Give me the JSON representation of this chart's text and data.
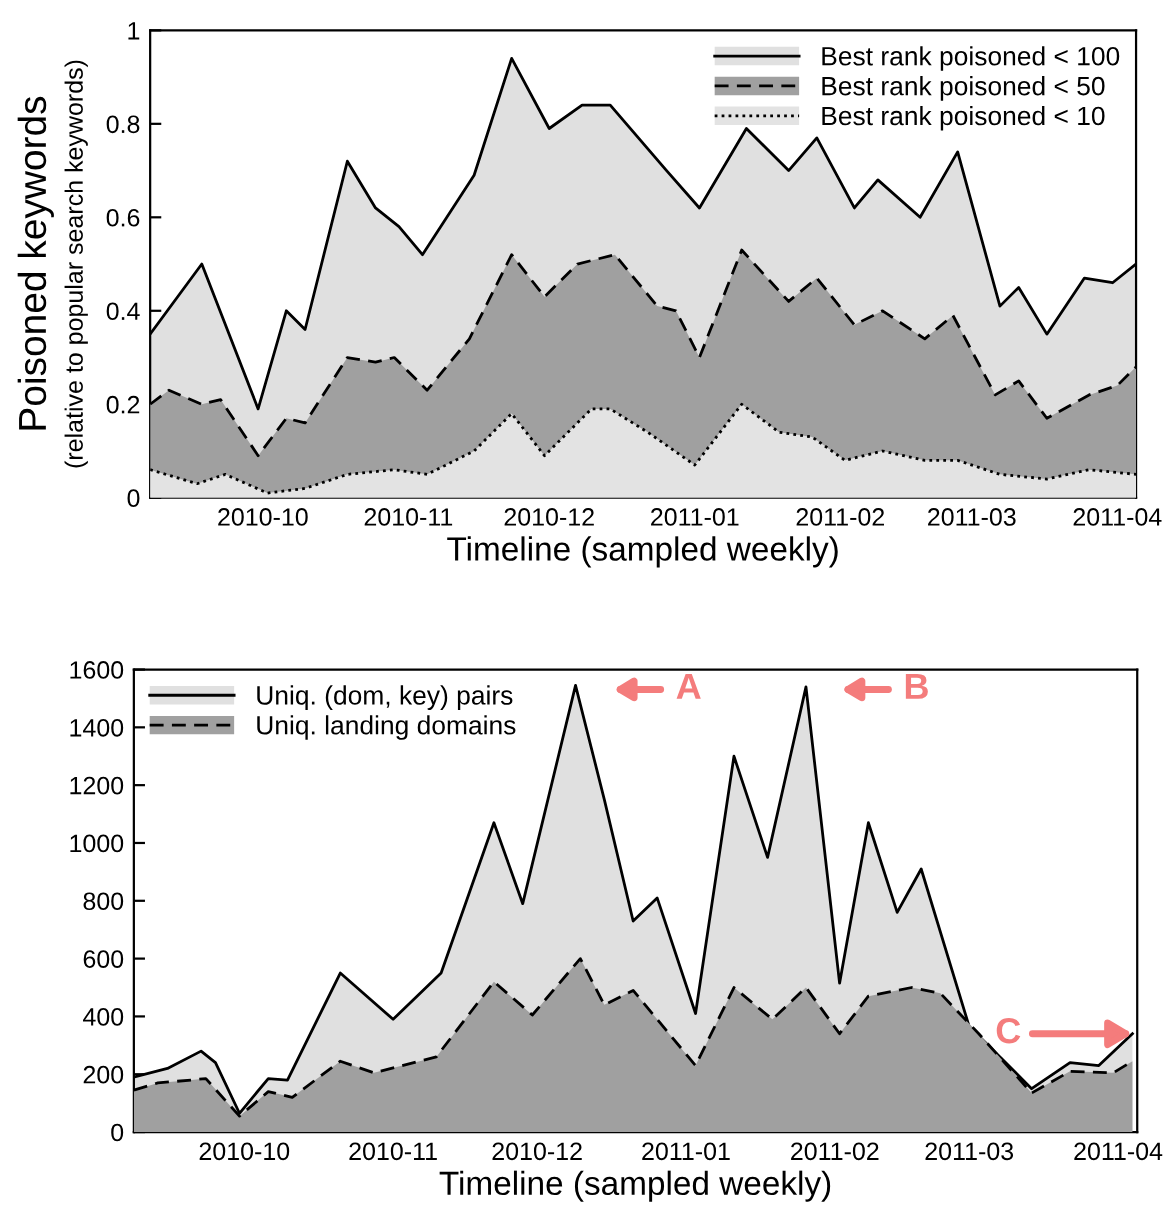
{
  "chart_data": [
    {
      "type": "area",
      "ylabel": "Poisoned keywords\n(relative to popular search keywords)",
      "xlabel": "Timeline (sampled weekly)",
      "xlim": [
        "2010-09-07",
        "2011-04-05"
      ],
      "xticks": [
        "2010-10",
        "2010-11",
        "2010-12",
        "2011-01",
        "2011-02",
        "2011-03",
        "2011-04"
      ],
      "ylim": [
        0,
        1
      ],
      "yticks": [
        0,
        0.2,
        0.4,
        0.6,
        0.8,
        1
      ],
      "legend": "top right",
      "grid": false,
      "series": [
        {
          "name": "Best rank poisoned < 100",
          "color": "#e0e0e0",
          "line_style": "solid",
          "x": [
            "2010-09-07",
            "2010-09-18",
            "2010-09-30",
            "2010-10-06",
            "2010-10-10",
            "2010-10-19",
            "2010-10-25",
            "2010-10-30",
            "2010-11-04",
            "2010-11-15",
            "2010-11-23",
            "2010-12-01",
            "2010-12-08",
            "2010-12-14",
            "2010-12-26",
            "2011-01-02",
            "2011-01-12",
            "2011-01-21",
            "2011-01-27",
            "2011-02-04",
            "2011-02-09",
            "2011-02-18",
            "2011-02-26",
            "2011-03-07",
            "2011-03-11",
            "2011-03-17",
            "2011-03-25",
            "2011-03-31",
            "2011-04-05"
          ],
          "values": [
            0.35,
            0.5,
            0.19,
            0.4,
            0.36,
            0.72,
            0.62,
            0.58,
            0.52,
            0.69,
            0.94,
            0.79,
            0.84,
            0.84,
            0.7,
            0.62,
            0.79,
            0.7,
            0.77,
            0.62,
            0.68,
            0.6,
            0.74,
            0.41,
            0.45,
            0.35,
            0.47,
            0.46,
            0.5
          ]
        },
        {
          "name": "Best rank poisoned < 50",
          "color": "#a0a0a0",
          "line_style": "dashed",
          "x": [
            "2010-09-07",
            "2010-09-11",
            "2010-09-18",
            "2010-09-22",
            "2010-09-30",
            "2010-10-06",
            "2010-10-10",
            "2010-10-19",
            "2010-10-25",
            "2010-10-29",
            "2010-11-05",
            "2010-11-14",
            "2010-11-23",
            "2010-11-30",
            "2010-12-07",
            "2010-12-15",
            "2010-12-24",
            "2010-12-28",
            "2011-01-02",
            "2011-01-11",
            "2011-01-21",
            "2011-01-27",
            "2011-02-04",
            "2011-02-10",
            "2011-02-19",
            "2011-02-25",
            "2011-03-06",
            "2011-03-11",
            "2011-03-17",
            "2011-03-26",
            "2011-04-01",
            "2011-04-05"
          ],
          "values": [
            0.2,
            0.23,
            0.2,
            0.21,
            0.09,
            0.17,
            0.16,
            0.3,
            0.29,
            0.3,
            0.23,
            0.34,
            0.52,
            0.43,
            0.5,
            0.52,
            0.41,
            0.4,
            0.3,
            0.53,
            0.42,
            0.47,
            0.37,
            0.4,
            0.34,
            0.39,
            0.22,
            0.25,
            0.17,
            0.22,
            0.24,
            0.28
          ]
        },
        {
          "name": "Best rank poisoned < 10",
          "color": "#e3e3e3",
          "line_style": "dotted",
          "x": [
            "2010-09-07",
            "2010-09-17",
            "2010-09-23",
            "2010-10-02",
            "2010-10-10",
            "2010-10-19",
            "2010-10-29",
            "2010-11-05",
            "2010-11-15",
            "2010-11-23",
            "2010-11-30",
            "2010-12-10",
            "2010-12-14",
            "2010-12-22",
            "2011-01-01",
            "2011-01-11",
            "2011-01-19",
            "2011-01-26",
            "2011-02-02",
            "2011-02-10",
            "2011-02-19",
            "2011-02-26",
            "2011-03-07",
            "2011-03-17",
            "2011-03-26",
            "2011-04-05"
          ],
          "values": [
            0.06,
            0.03,
            0.05,
            0.01,
            0.02,
            0.05,
            0.06,
            0.05,
            0.1,
            0.18,
            0.09,
            0.19,
            0.19,
            0.14,
            0.07,
            0.2,
            0.14,
            0.13,
            0.08,
            0.1,
            0.08,
            0.08,
            0.05,
            0.04,
            0.06,
            0.05
          ]
        }
      ]
    },
    {
      "type": "area",
      "xlabel": "Timeline (sampled weekly)",
      "xlim": [
        "2010-09-08",
        "2011-04-05"
      ],
      "xticks": [
        "2010-10",
        "2010-11",
        "2010-12",
        "2011-01",
        "2011-02",
        "2011-03",
        "2011-04"
      ],
      "ylim": [
        0,
        1600
      ],
      "yticks": [
        0,
        200,
        400,
        600,
        800,
        1000,
        1200,
        1400,
        1600
      ],
      "legend": "top left",
      "grid": false,
      "annotations": [
        "A",
        "B",
        {
          "text": "C",
          "x": "2011-04-04",
          "y": 340
        }
      ],
      "series": [
        {
          "name": "Uniq. (dom, key) pairs",
          "color": "#e0e0e0",
          "line_style": "solid",
          "x": [
            "2010-09-08",
            "2010-09-15",
            "2010-09-22",
            "2010-09-25",
            "2010-09-30",
            "2010-10-06",
            "2010-10-10",
            "2010-10-21",
            "2010-11-01",
            "2010-11-11",
            "2010-11-22",
            "2010-11-28",
            "2010-12-09",
            "2010-12-15",
            "2010-12-21",
            "2010-12-26",
            "2011-01-03",
            "2011-01-11",
            "2011-01-18",
            "2011-01-26",
            "2011-02-02",
            "2011-02-08",
            "2011-02-14",
            "2011-02-19",
            "2011-03-01",
            "2011-03-08",
            "2011-03-14",
            "2011-03-22",
            "2011-03-28",
            "2011-04-04"
          ],
          "values": [
            190,
            220,
            280,
            240,
            65,
            185,
            180,
            550,
            390,
            550,
            1070,
            790,
            1545,
            1150,
            730,
            810,
            410,
            1300,
            950,
            1540,
            515,
            1070,
            760,
            910,
            365,
            250,
            150,
            240,
            230,
            340
          ]
        },
        {
          "name": "Uniq. landing domains",
          "color": "#a0a0a0",
          "line_style": "dashed",
          "x": [
            "2010-09-08",
            "2010-09-13",
            "2010-09-20",
            "2010-09-23",
            "2010-09-30",
            "2010-10-06",
            "2010-10-11",
            "2010-10-21",
            "2010-10-28",
            "2010-11-10",
            "2010-11-22",
            "2010-11-30",
            "2010-12-10",
            "2010-12-15",
            "2010-12-21",
            "2011-01-03",
            "2011-01-11",
            "2011-01-19",
            "2011-01-26",
            "2011-02-02",
            "2011-02-08",
            "2011-02-17",
            "2011-02-23",
            "2011-03-03",
            "2011-03-14",
            "2011-03-22",
            "2011-03-31",
            "2011-04-04"
          ],
          "values": [
            145,
            170,
            180,
            185,
            55,
            140,
            120,
            245,
            205,
            260,
            520,
            405,
            600,
            440,
            490,
            230,
            500,
            390,
            500,
            340,
            470,
            500,
            480,
            340,
            135,
            210,
            205,
            245
          ]
        }
      ]
    }
  ]
}
